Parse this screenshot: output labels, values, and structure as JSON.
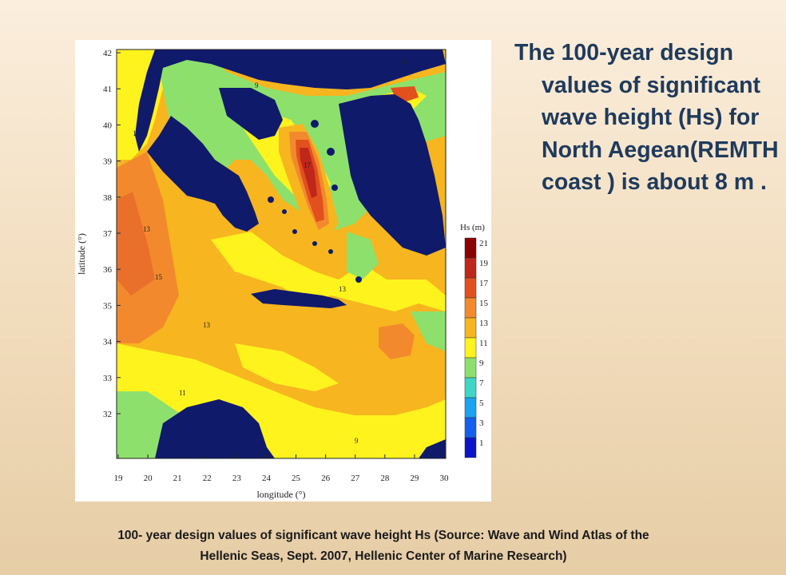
{
  "slide": {
    "bullet": "The  100-year design values of significant wave height (Hs)  for North Aegean(REMTH coast )  is about 8 m .",
    "caption_line1": "100- year design values of significant wave height Hs (Source: Wave and Wind Atlas of the",
    "caption_line2": "Hellenic Seas, Sept. 2007, Hellenic Center of Marine Research)"
  },
  "map": {
    "x_axis_title": "longitude (°)",
    "y_axis_title": "latitude (°)",
    "x_ticks": [
      "19",
      "20",
      "21",
      "22",
      "23",
      "24",
      "25",
      "26",
      "27",
      "28",
      "29",
      "30"
    ],
    "y_ticks": [
      "42",
      "41",
      "40",
      "39",
      "38",
      "37",
      "36",
      "35",
      "34",
      "33",
      "32"
    ],
    "legend": {
      "title": "Hs (m)",
      "levels": [
        "21",
        "19",
        "17",
        "15",
        "13",
        "11",
        "9",
        "7",
        "5",
        "3",
        "1"
      ],
      "colors": [
        "#8b0000",
        "#c0271b",
        "#e2501e",
        "#f28a2d",
        "#f7b51f",
        "#fff31e",
        "#8ee06c",
        "#3fd6c6",
        "#1aa3f0",
        "#1460ee",
        "#0b14c8"
      ]
    },
    "colors": {
      "land": "#0f1a6b",
      "hs_9": "#8ee06c",
      "hs_11": "#fff31e",
      "hs_13": "#f7b51f",
      "hs_15": "#f28a2d",
      "hs_17": "#e2501e",
      "hs_19": "#c0271b"
    },
    "contour_labels": [
      "11",
      "13",
      "15",
      "17",
      "9"
    ]
  }
}
